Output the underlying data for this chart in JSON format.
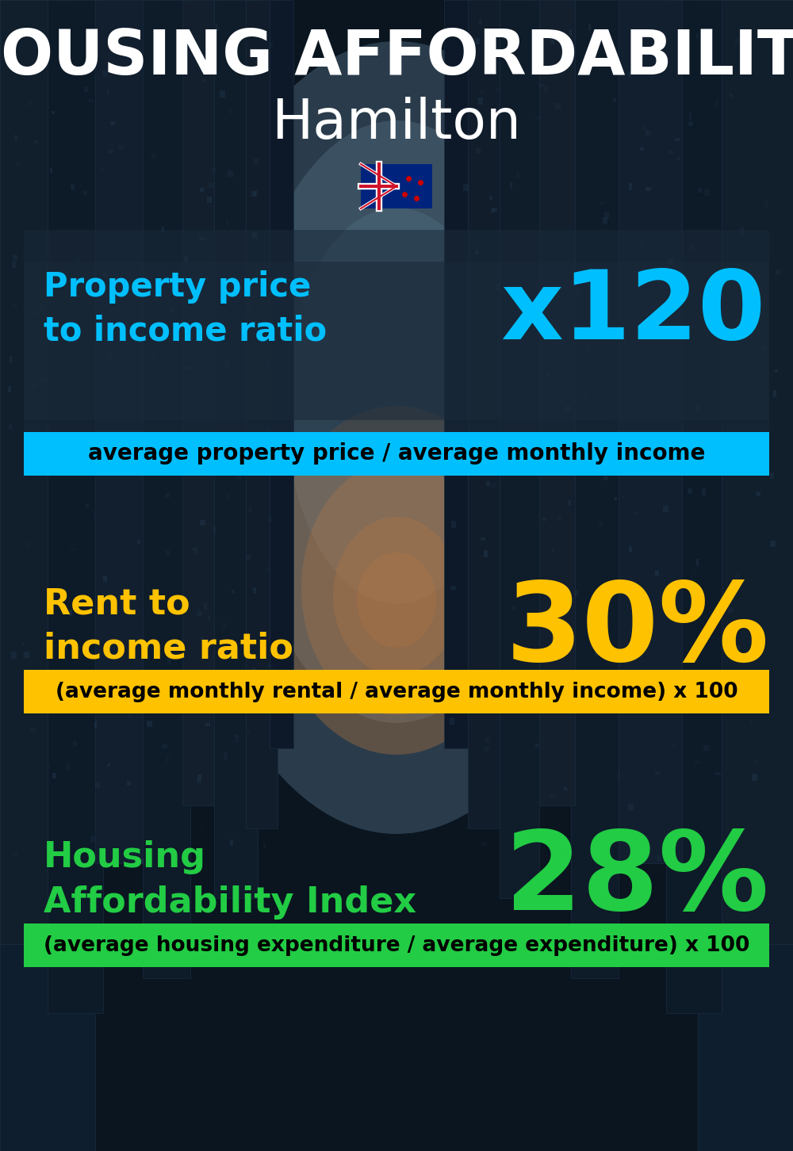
{
  "title_line1": "HOUSING AFFORDABILITY",
  "title_line2": "Hamilton",
  "flag_emoji": "🇳🇿",
  "bg_color": "#0a1520",
  "title_color": "#ffffff",
  "subtitle_color": "#ffffff",
  "section1_label": "Property price\nto income ratio",
  "section1_value": "x120",
  "section1_label_color": "#00bfff",
  "section1_value_color": "#00bfff",
  "section1_banner": "average property price / average monthly income",
  "section1_banner_bg": "#00bfff",
  "section1_banner_color": "#000000",
  "section2_label": "Rent to\nincome ratio",
  "section2_value": "30%",
  "section2_label_color": "#ffc200",
  "section2_value_color": "#ffc200",
  "section2_banner": "(average monthly rental / average monthly income) x 100",
  "section2_banner_bg": "#ffc200",
  "section2_banner_color": "#000000",
  "section3_label": "Housing\nAffordability Index",
  "section3_value": "28%",
  "section3_label_color": "#22cc44",
  "section3_value_color": "#22cc44",
  "section3_banner": "(average housing expenditure / average expenditure) x 100",
  "section3_banner_bg": "#22cc44",
  "section3_banner_color": "#000000"
}
